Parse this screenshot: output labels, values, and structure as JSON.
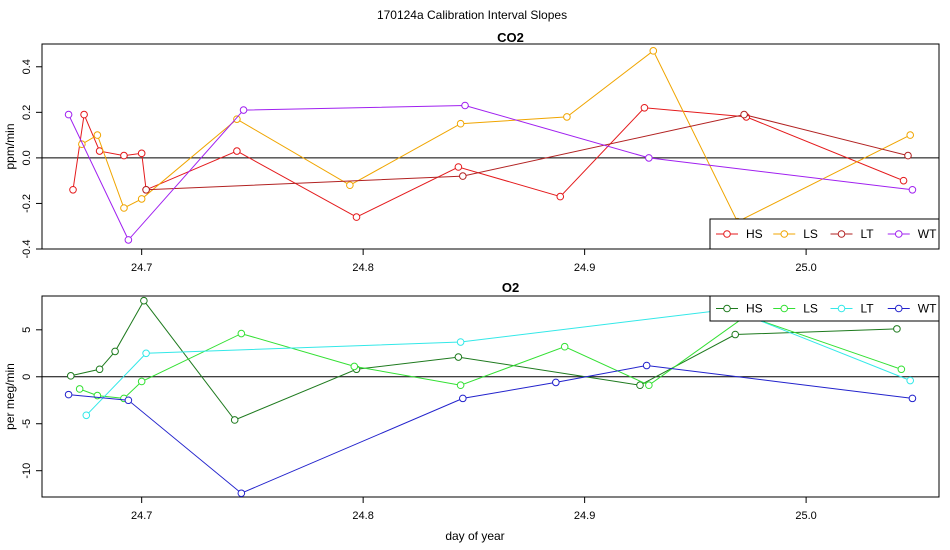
{
  "figure": {
    "title": "170124a   Calibration Interval Slopes",
    "xlabel": "day of year"
  },
  "chart_data": [
    {
      "type": "line",
      "title": "CO2",
      "xlabel": "",
      "ylabel": "ppm/min",
      "xlim": [
        24.655,
        25.06
      ],
      "ylim": [
        -0.4,
        0.5
      ],
      "xticks": [
        24.7,
        24.8,
        24.9,
        25.0
      ],
      "xtick_labels": [
        "24.7",
        "24.8",
        "24.9",
        "25.0"
      ],
      "yticks": [
        -0.4,
        -0.2,
        0.0,
        0.2,
        0.4
      ],
      "ytick_labels": [
        "-0.4",
        "-0.2",
        "0.0",
        "0.2",
        "0.4"
      ],
      "hline": 0,
      "grid": false,
      "legend_position": "bottom-right",
      "series": [
        {
          "name": "HS",
          "color": "#e41a1c",
          "x": [
            24.669,
            24.674,
            24.681,
            24.692,
            24.7,
            24.702,
            24.743,
            24.797,
            24.843,
            24.889,
            24.927,
            24.973,
            25.044
          ],
          "y": [
            -0.14,
            0.19,
            0.03,
            0.01,
            0.02,
            -0.14,
            0.03,
            -0.26,
            -0.04,
            -0.17,
            0.22,
            0.18,
            -0.1
          ]
        },
        {
          "name": "LS",
          "color": "#f0a500",
          "x": [
            24.673,
            24.68,
            24.692,
            24.7,
            24.743,
            24.794,
            24.844,
            24.892,
            24.931,
            24.969,
            25.047
          ],
          "y": [
            0.06,
            0.1,
            -0.22,
            -0.18,
            0.17,
            -0.12,
            0.15,
            0.18,
            0.47,
            -0.28,
            0.1
          ]
        },
        {
          "name": "LT",
          "color": "#b22222",
          "x": [
            24.702,
            24.845,
            24.972,
            25.046
          ],
          "y": [
            -0.14,
            -0.08,
            0.19,
            0.01
          ]
        },
        {
          "name": "WT",
          "color": "#a020f0",
          "x": [
            24.667,
            24.694,
            24.746,
            24.846,
            24.929,
            25.048
          ],
          "y": [
            0.19,
            -0.36,
            0.21,
            0.23,
            0.0,
            -0.14
          ]
        }
      ]
    },
    {
      "type": "line",
      "title": "O2",
      "xlabel": "day of year",
      "ylabel": "per meg/min",
      "xlim": [
        24.655,
        25.06
      ],
      "ylim": [
        -12.8,
        8.6
      ],
      "xticks": [
        24.7,
        24.8,
        24.9,
        25.0
      ],
      "xtick_labels": [
        "24.7",
        "24.8",
        "24.9",
        "25.0"
      ],
      "yticks": [
        -10,
        -5,
        0,
        5
      ],
      "ytick_labels": [
        "-10",
        "-5",
        "0",
        "5"
      ],
      "hline": 0,
      "grid": false,
      "legend_position": "top-right",
      "series": [
        {
          "name": "HS",
          "color": "#1e7a1e",
          "x": [
            24.668,
            24.681,
            24.688,
            24.701,
            24.742,
            24.797,
            24.843,
            24.925,
            24.968,
            25.041
          ],
          "y": [
            0.1,
            0.8,
            2.7,
            8.1,
            -4.6,
            0.8,
            2.1,
            -0.9,
            4.5,
            5.1
          ]
        },
        {
          "name": "LS",
          "color": "#33e033",
          "x": [
            24.672,
            24.68,
            24.692,
            24.7,
            24.745,
            24.796,
            24.844,
            24.891,
            24.929,
            24.973,
            25.043
          ],
          "y": [
            -1.3,
            -2.0,
            -2.3,
            -0.5,
            4.6,
            1.1,
            -0.9,
            3.2,
            -0.9,
            6.5,
            0.8
          ]
        },
        {
          "name": "LT",
          "color": "#33e8e8",
          "x": [
            24.675,
            24.702,
            24.844,
            24.966,
            25.047
          ],
          "y": [
            -4.1,
            2.5,
            3.7,
            7.2,
            -0.4
          ]
        },
        {
          "name": "WT",
          "color": "#2222cc",
          "x": [
            24.667,
            24.694,
            24.745,
            24.845,
            24.887,
            24.928,
            25.048
          ],
          "y": [
            -1.9,
            -2.5,
            -12.4,
            -2.3,
            -0.6,
            1.2,
            -2.3
          ]
        }
      ]
    }
  ]
}
